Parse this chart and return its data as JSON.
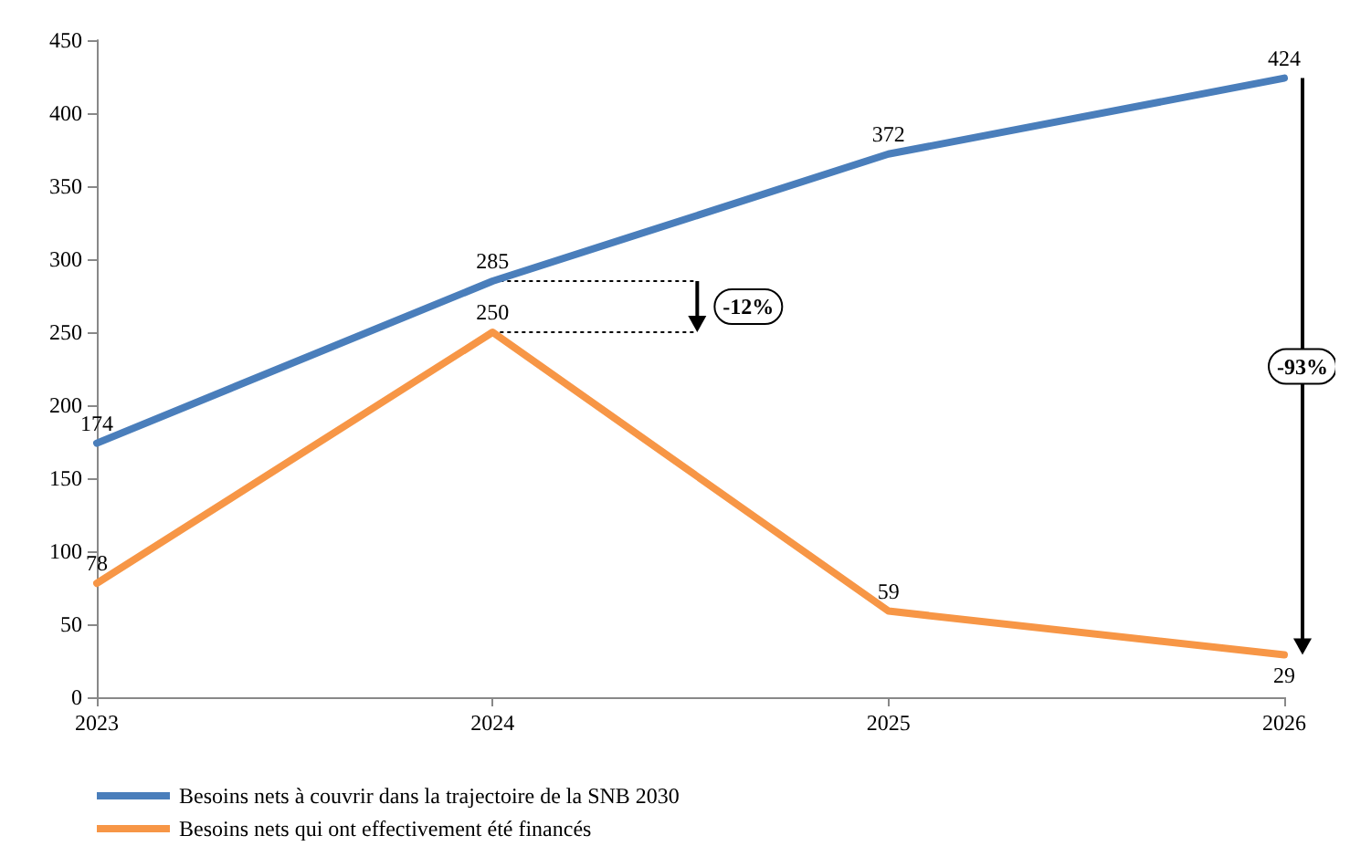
{
  "chart_data": {
    "type": "line",
    "categories": [
      "2023",
      "2024",
      "2025",
      "2026"
    ],
    "series": [
      {
        "name": "Besoins nets à couvrir dans la trajectoire de la SNB 2030",
        "color": "#4a7ebb",
        "values": [
          174,
          285,
          372,
          424
        ]
      },
      {
        "name": "Besoins nets qui ont effectivement été financés",
        "color": "#f79646",
        "values": [
          78,
          250,
          59,
          29
        ]
      }
    ],
    "ylim": [
      0,
      450
    ],
    "yticks": [
      0,
      50,
      100,
      150,
      200,
      250,
      300,
      350,
      400,
      450
    ],
    "grid": false,
    "legend": "bottom",
    "marker": "none",
    "line_style": "solid",
    "data_labels": true,
    "annotations": [
      "-12%",
      "-93%"
    ]
  }
}
